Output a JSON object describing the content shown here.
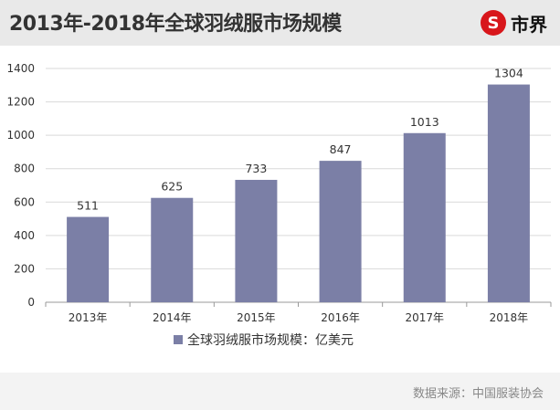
{
  "header": {
    "title": "2013年-2018年全球羽绒服市场规模",
    "logo_mark": "S",
    "logo_text": "市界"
  },
  "colors": {
    "bar": "#7b7fa6",
    "accent": "#d8161b"
  },
  "chart_data": {
    "type": "bar",
    "title": "2013年-2018年全球羽绒服市场规模",
    "categories": [
      "2013年",
      "2014年",
      "2015年",
      "2016年",
      "2017年",
      "2018年"
    ],
    "series": [
      {
        "name": "全球羽绒服市场规模：亿美元",
        "values": [
          511,
          625,
          733,
          847,
          1013,
          1304
        ]
      }
    ],
    "data_labels": [
      "511",
      "625",
      "733",
      "847",
      "1013",
      "1304"
    ],
    "y_ticks": [
      "0",
      "200",
      "400",
      "600",
      "800",
      "1000",
      "1200",
      "1400"
    ],
    "ylim": [
      0,
      1400
    ],
    "grid": true,
    "legend_position": "bottom-center",
    "xlabel": "",
    "ylabel": ""
  },
  "footer": {
    "source": "数据来源：中国服装协会"
  }
}
